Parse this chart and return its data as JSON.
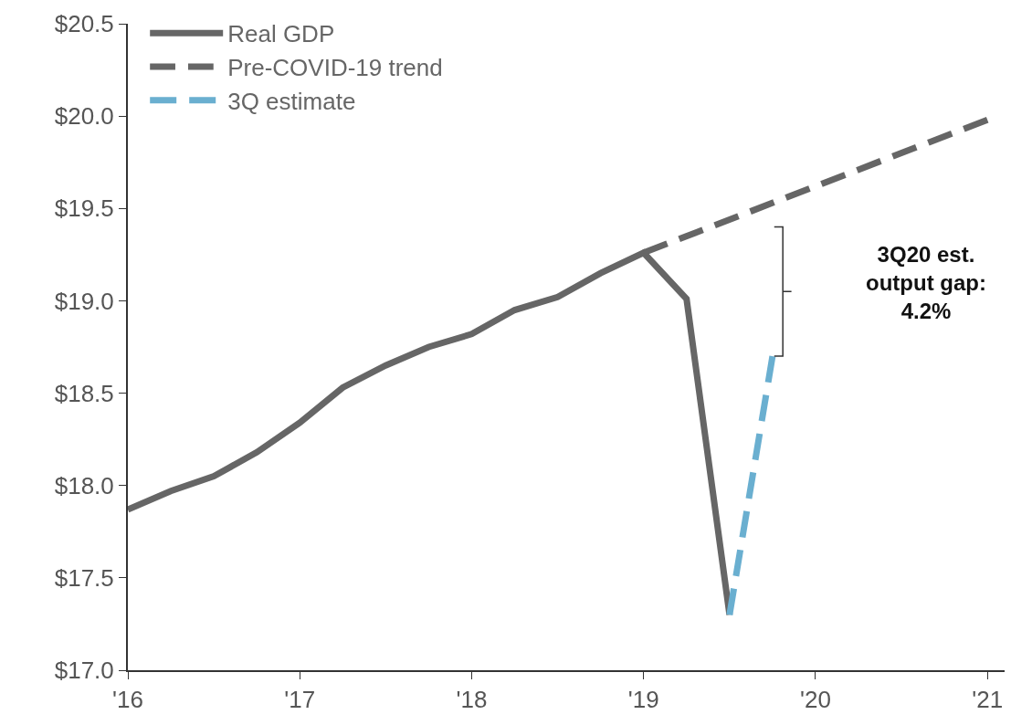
{
  "chart_data": {
    "type": "line",
    "xlim": [
      2016,
      2021.1
    ],
    "xticks": [
      {
        "value": 2016,
        "label": "'16"
      },
      {
        "value": 2017,
        "label": "'17"
      },
      {
        "value": 2018,
        "label": "'18"
      },
      {
        "value": 2019,
        "label": "'19"
      },
      {
        "value": 2020,
        "label": "'20"
      },
      {
        "value": 2021,
        "label": "'21"
      }
    ],
    "ylim": [
      17,
      20.5
    ],
    "yticks": [
      {
        "value": 17,
        "label": "$17.0"
      },
      {
        "value": 17.5,
        "label": "$17.5"
      },
      {
        "value": 18,
        "label": "$18.0"
      },
      {
        "value": 18.5,
        "label": "$18.5"
      },
      {
        "value": 19,
        "label": "$19.0"
      },
      {
        "value": 19.5,
        "label": "$19.5"
      },
      {
        "value": 20,
        "label": "$20.0"
      },
      {
        "value": 20.5,
        "label": "$20.5"
      }
    ],
    "series": [
      {
        "name": "Real GDP",
        "color": "#666666",
        "line_style": "solid",
        "x": [
          2016,
          2016.25,
          2016.5,
          2016.75,
          2017,
          2017.25,
          2017.5,
          2017.75,
          2018,
          2018.25,
          2018.5,
          2018.75,
          2019,
          2019.25,
          2019.5
        ],
        "values": [
          17.87,
          17.97,
          18.05,
          18.18,
          18.34,
          18.53,
          18.65,
          18.75,
          18.82,
          18.95,
          19.02,
          19.15,
          19.26,
          19.01,
          17.3
        ]
      },
      {
        "name": "Pre-COVID-19 trend",
        "color": "#666666",
        "line_style": "dashed",
        "x": [
          2019,
          2020,
          2021
        ],
        "values": [
          19.26,
          19.62,
          19.98
        ]
      },
      {
        "name": "3Q estimate",
        "color": "#6aafd0",
        "line_style": "dashed",
        "x": [
          2019.5,
          2019.75
        ],
        "values": [
          17.3,
          18.7
        ]
      }
    ],
    "annotations": [
      "3Q20 est.\noutput gap:\n4.2%"
    ],
    "grid": false,
    "legend": "top left"
  }
}
